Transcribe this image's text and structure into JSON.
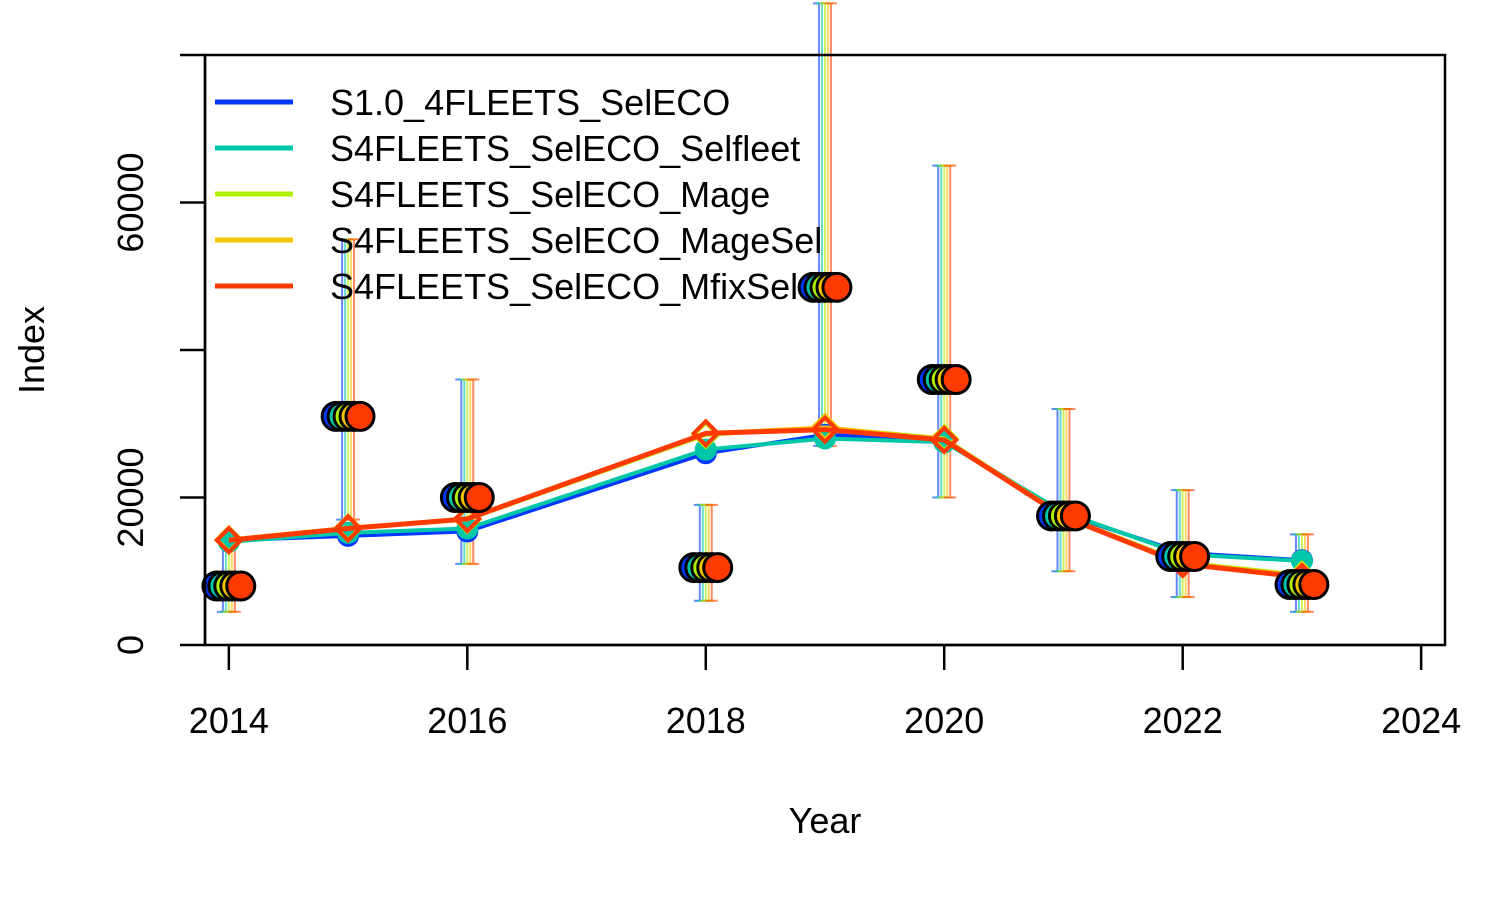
{
  "chart_data": {
    "type": "line",
    "xlabel": "Year",
    "ylabel": "Index",
    "xlim": [
      2013.8,
      2024.2
    ],
    "ylim": [
      0,
      80000
    ],
    "x_ticks": [
      "2014",
      "2016",
      "2018",
      "2020",
      "2022",
      "2024"
    ],
    "y_ticks": [
      "0",
      "20000",
      "60000"
    ],
    "y_tick_values": [
      0,
      20000,
      40000,
      60000,
      80000
    ],
    "legend_position": "top-left",
    "grid": false,
    "observed": {
      "x": [
        2014,
        2015,
        2016,
        2018,
        2019,
        2020,
        2021,
        2022,
        2023
      ],
      "values": [
        8000,
        31000,
        20000,
        10500,
        48500,
        36000,
        17500,
        12000,
        8200
      ],
      "lower": [
        4500,
        17000,
        11000,
        6000,
        27000,
        20000,
        10000,
        6500,
        4500
      ],
      "upper": [
        14500,
        55000,
        36000,
        19000,
        87000,
        65000,
        32000,
        21000,
        15000
      ]
    },
    "series": [
      {
        "name": "S1.0_4FLEETS_SelECO",
        "color": "#0038FF",
        "x": [
          2014,
          2015,
          2016,
          2018,
          2019,
          2020,
          2021,
          2022,
          2023
        ],
        "values": [
          14200,
          14800,
          15400,
          26000,
          28500,
          27800,
          17800,
          12500,
          11500
        ]
      },
      {
        "name": "S4FLEETS_SelECO_Selfleet",
        "color": "#00C7A8",
        "x": [
          2014,
          2015,
          2016,
          2018,
          2019,
          2020,
          2021,
          2022,
          2023
        ],
        "values": [
          14000,
          15200,
          15800,
          26500,
          28000,
          27500,
          18000,
          12300,
          11400
        ]
      },
      {
        "name": "S4FLEETS_SelECO_Mage",
        "color": "#B0F000",
        "x": [
          2014,
          2015,
          2016,
          2018,
          2019,
          2020,
          2021,
          2022,
          2023
        ],
        "values": [
          14200,
          15800,
          17000,
          28500,
          29500,
          28000,
          17500,
          11200,
          9500
        ]
      },
      {
        "name": "S4FLEETS_SelECO_MageSel",
        "color": "#F5C400",
        "x": [
          2014,
          2015,
          2016,
          2018,
          2019,
          2020,
          2021,
          2022,
          2023
        ],
        "values": [
          14300,
          15900,
          17100,
          28700,
          29500,
          27900,
          17500,
          11100,
          9400
        ]
      },
      {
        "name": "S4FLEETS_SelECO_MfixSel",
        "color": "#FF3A00",
        "x": [
          2014,
          2015,
          2016,
          2018,
          2019,
          2020,
          2021,
          2022,
          2023
        ],
        "values": [
          14200,
          15800,
          17100,
          28700,
          29200,
          27800,
          17400,
          11000,
          9200
        ]
      }
    ]
  }
}
